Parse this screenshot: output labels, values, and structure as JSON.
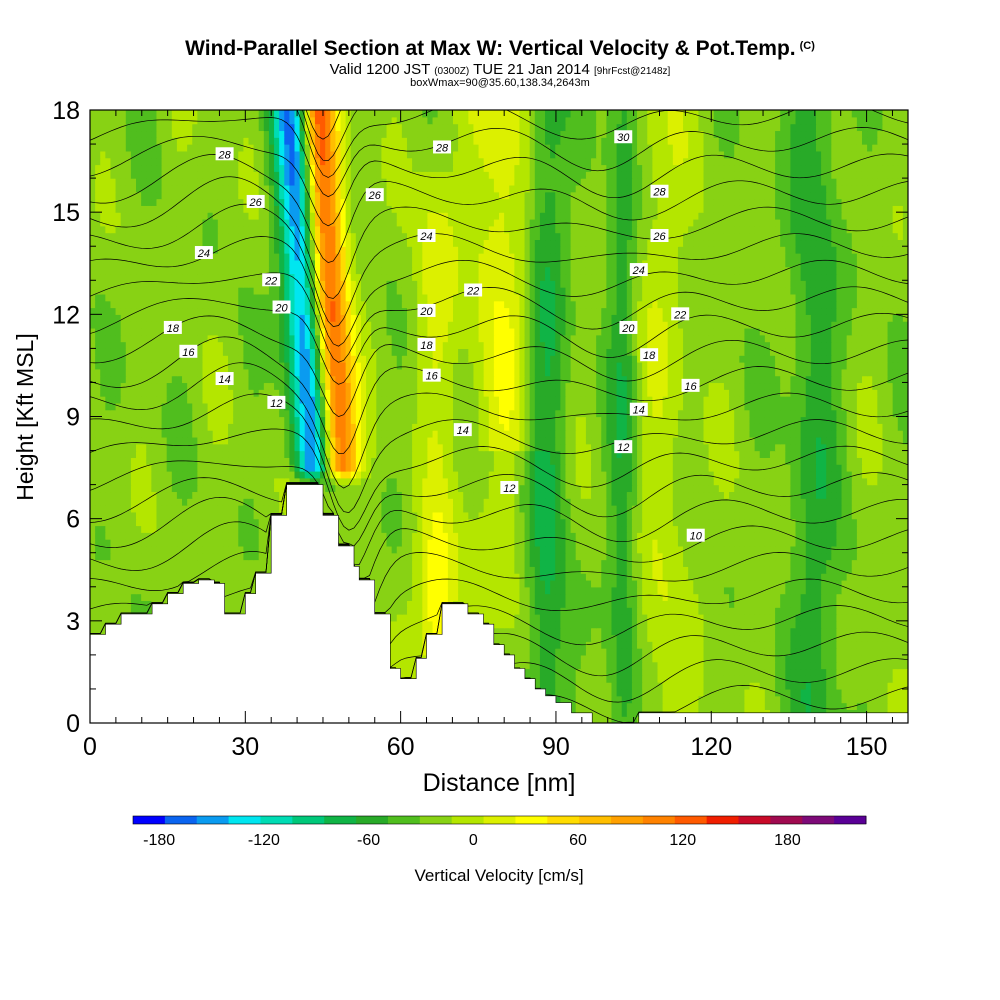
{
  "titles": {
    "main": "Wind-Parallel Section at Max W: Vertical Velocity & Pot.Temp.",
    "copyright": "(C)",
    "valid_prefix": "Valid 1200 JST",
    "valid_utc": "(0300Z)",
    "valid_date": "TUE 21 Jan 2014",
    "forecast": "[9hrFcst@2148z]",
    "box": "boxWmax=90@35.60,138.34,2643m"
  },
  "chart_data": {
    "type": "heatmap",
    "xlabel": "Distance [nm]",
    "ylabel": "Height [Kft MSL]",
    "xlim": [
      0,
      158
    ],
    "ylim": [
      0,
      18
    ],
    "x_ticks": [
      0,
      30,
      60,
      90,
      120,
      150
    ],
    "y_ticks": [
      0,
      3,
      6,
      9,
      12,
      15,
      18
    ],
    "colorbar": {
      "label": "Vertical Velocity [cm/s]",
      "tick_values": [
        -180,
        -120,
        -60,
        0,
        60,
        120,
        180
      ],
      "tick_labels": [
        "-180",
        "-120",
        "-60",
        "0",
        "60",
        "120",
        "180"
      ],
      "range": [
        -195,
        225
      ],
      "bin_width": 20,
      "colors": [
        "#0000ff",
        "#0a64f0",
        "#0a9bf0",
        "#00e6f0",
        "#00dcb4",
        "#00c87a",
        "#10b446",
        "#28aa28",
        "#50be1e",
        "#88d214",
        "#b4e600",
        "#dcf000",
        "#ffff00",
        "#ffdc00",
        "#ffbe00",
        "#ffa000",
        "#ff8200",
        "#ff5a00",
        "#f01e00",
        "#c80a28",
        "#a00a50",
        "#7d0a78",
        "#5a0096"
      ]
    },
    "terrain_profile": {
      "distance_nm": [
        0,
        3,
        3,
        6,
        6,
        12,
        12,
        15,
        15,
        18,
        18,
        21,
        21,
        24,
        24,
        26,
        26,
        30,
        30,
        32,
        32,
        35,
        35,
        38,
        38,
        41,
        41,
        45,
        45,
        48,
        48,
        51,
        51,
        52,
        52,
        55,
        55,
        58,
        58,
        60,
        60,
        63,
        63,
        65,
        65,
        68,
        68,
        70,
        70,
        73,
        73,
        76,
        76,
        78,
        78,
        80,
        80,
        82,
        82,
        84,
        84,
        86,
        86,
        88,
        88,
        90,
        90,
        93,
        93,
        97,
        97,
        103,
        103,
        106,
        106,
        158
      ],
      "height_kft": [
        2.6,
        2.6,
        2.9,
        2.9,
        3.2,
        3.2,
        3.5,
        3.5,
        3.8,
        3.8,
        4.1,
        4.1,
        4.2,
        4.2,
        4.1,
        4.1,
        3.2,
        3.2,
        3.8,
        3.8,
        4.4,
        4.4,
        6.1,
        6.1,
        7.0,
        7.0,
        7.0,
        7.0,
        6.1,
        6.1,
        5.2,
        5.2,
        4.6,
        4.6,
        4.2,
        4.2,
        3.2,
        3.2,
        1.6,
        1.6,
        1.3,
        1.3,
        1.9,
        1.9,
        2.6,
        2.6,
        3.5,
        3.5,
        3.5,
        3.5,
        3.2,
        3.2,
        2.9,
        2.9,
        2.3,
        2.3,
        2.0,
        2.0,
        1.6,
        1.6,
        1.3,
        1.3,
        1.0,
        1.0,
        0.8,
        0.8,
        0.6,
        0.6,
        0.3,
        0.3,
        0.0,
        0.0,
        0.0,
        0.0,
        0.3,
        0.3
      ]
    },
    "isentropes": {
      "levels": [
        10,
        12,
        14,
        16,
        18,
        20,
        22,
        24,
        26,
        28,
        30
      ],
      "label_positions": [
        {
          "text": "28",
          "x": 26,
          "y": 16.7
        },
        {
          "text": "26",
          "x": 32,
          "y": 15.3
        },
        {
          "text": "24",
          "x": 22,
          "y": 13.8
        },
        {
          "text": "22",
          "x": 35,
          "y": 13.0
        },
        {
          "text": "20",
          "x": 37,
          "y": 12.2
        },
        {
          "text": "18",
          "x": 16,
          "y": 11.6
        },
        {
          "text": "16",
          "x": 19,
          "y": 10.9
        },
        {
          "text": "14",
          "x": 26,
          "y": 10.1
        },
        {
          "text": "12",
          "x": 36,
          "y": 9.4
        },
        {
          "text": "28",
          "x": 68,
          "y": 16.9
        },
        {
          "text": "26",
          "x": 55,
          "y": 15.5
        },
        {
          "text": "24",
          "x": 65,
          "y": 14.3
        },
        {
          "text": "22",
          "x": 74,
          "y": 12.7
        },
        {
          "text": "20",
          "x": 65,
          "y": 12.1
        },
        {
          "text": "18",
          "x": 65,
          "y": 11.1
        },
        {
          "text": "16",
          "x": 66,
          "y": 10.2
        },
        {
          "text": "14",
          "x": 72,
          "y": 8.6
        },
        {
          "text": "12",
          "x": 81,
          "y": 6.9
        },
        {
          "text": "30",
          "x": 103,
          "y": 17.2
        },
        {
          "text": "28",
          "x": 110,
          "y": 15.6
        },
        {
          "text": "26",
          "x": 110,
          "y": 14.3
        },
        {
          "text": "24",
          "x": 106,
          "y": 13.3
        },
        {
          "text": "22",
          "x": 114,
          "y": 12.0
        },
        {
          "text": "20",
          "x": 104,
          "y": 11.6
        },
        {
          "text": "18",
          "x": 108,
          "y": 10.8
        },
        {
          "text": "16",
          "x": 116,
          "y": 9.9
        },
        {
          "text": "14",
          "x": 106,
          "y": 9.2
        },
        {
          "text": "12",
          "x": 103,
          "y": 8.1
        },
        {
          "text": "10",
          "x": 117,
          "y": 5.5
        }
      ]
    },
    "velocity_features": [
      {
        "x": 44,
        "w": 4,
        "value": -190
      },
      {
        "x": 48,
        "w": 4,
        "value": 200
      },
      {
        "x": 67,
        "w": 4,
        "value": 75
      },
      {
        "x": 80,
        "w": 7,
        "value": 45
      },
      {
        "x": 88,
        "w": 4,
        "value": -55
      },
      {
        "x": 103,
        "w": 3,
        "value": -45
      },
      {
        "x": 110,
        "w": 6,
        "value": 25
      },
      {
        "x": 140,
        "w": 5,
        "value": -40
      }
    ]
  }
}
